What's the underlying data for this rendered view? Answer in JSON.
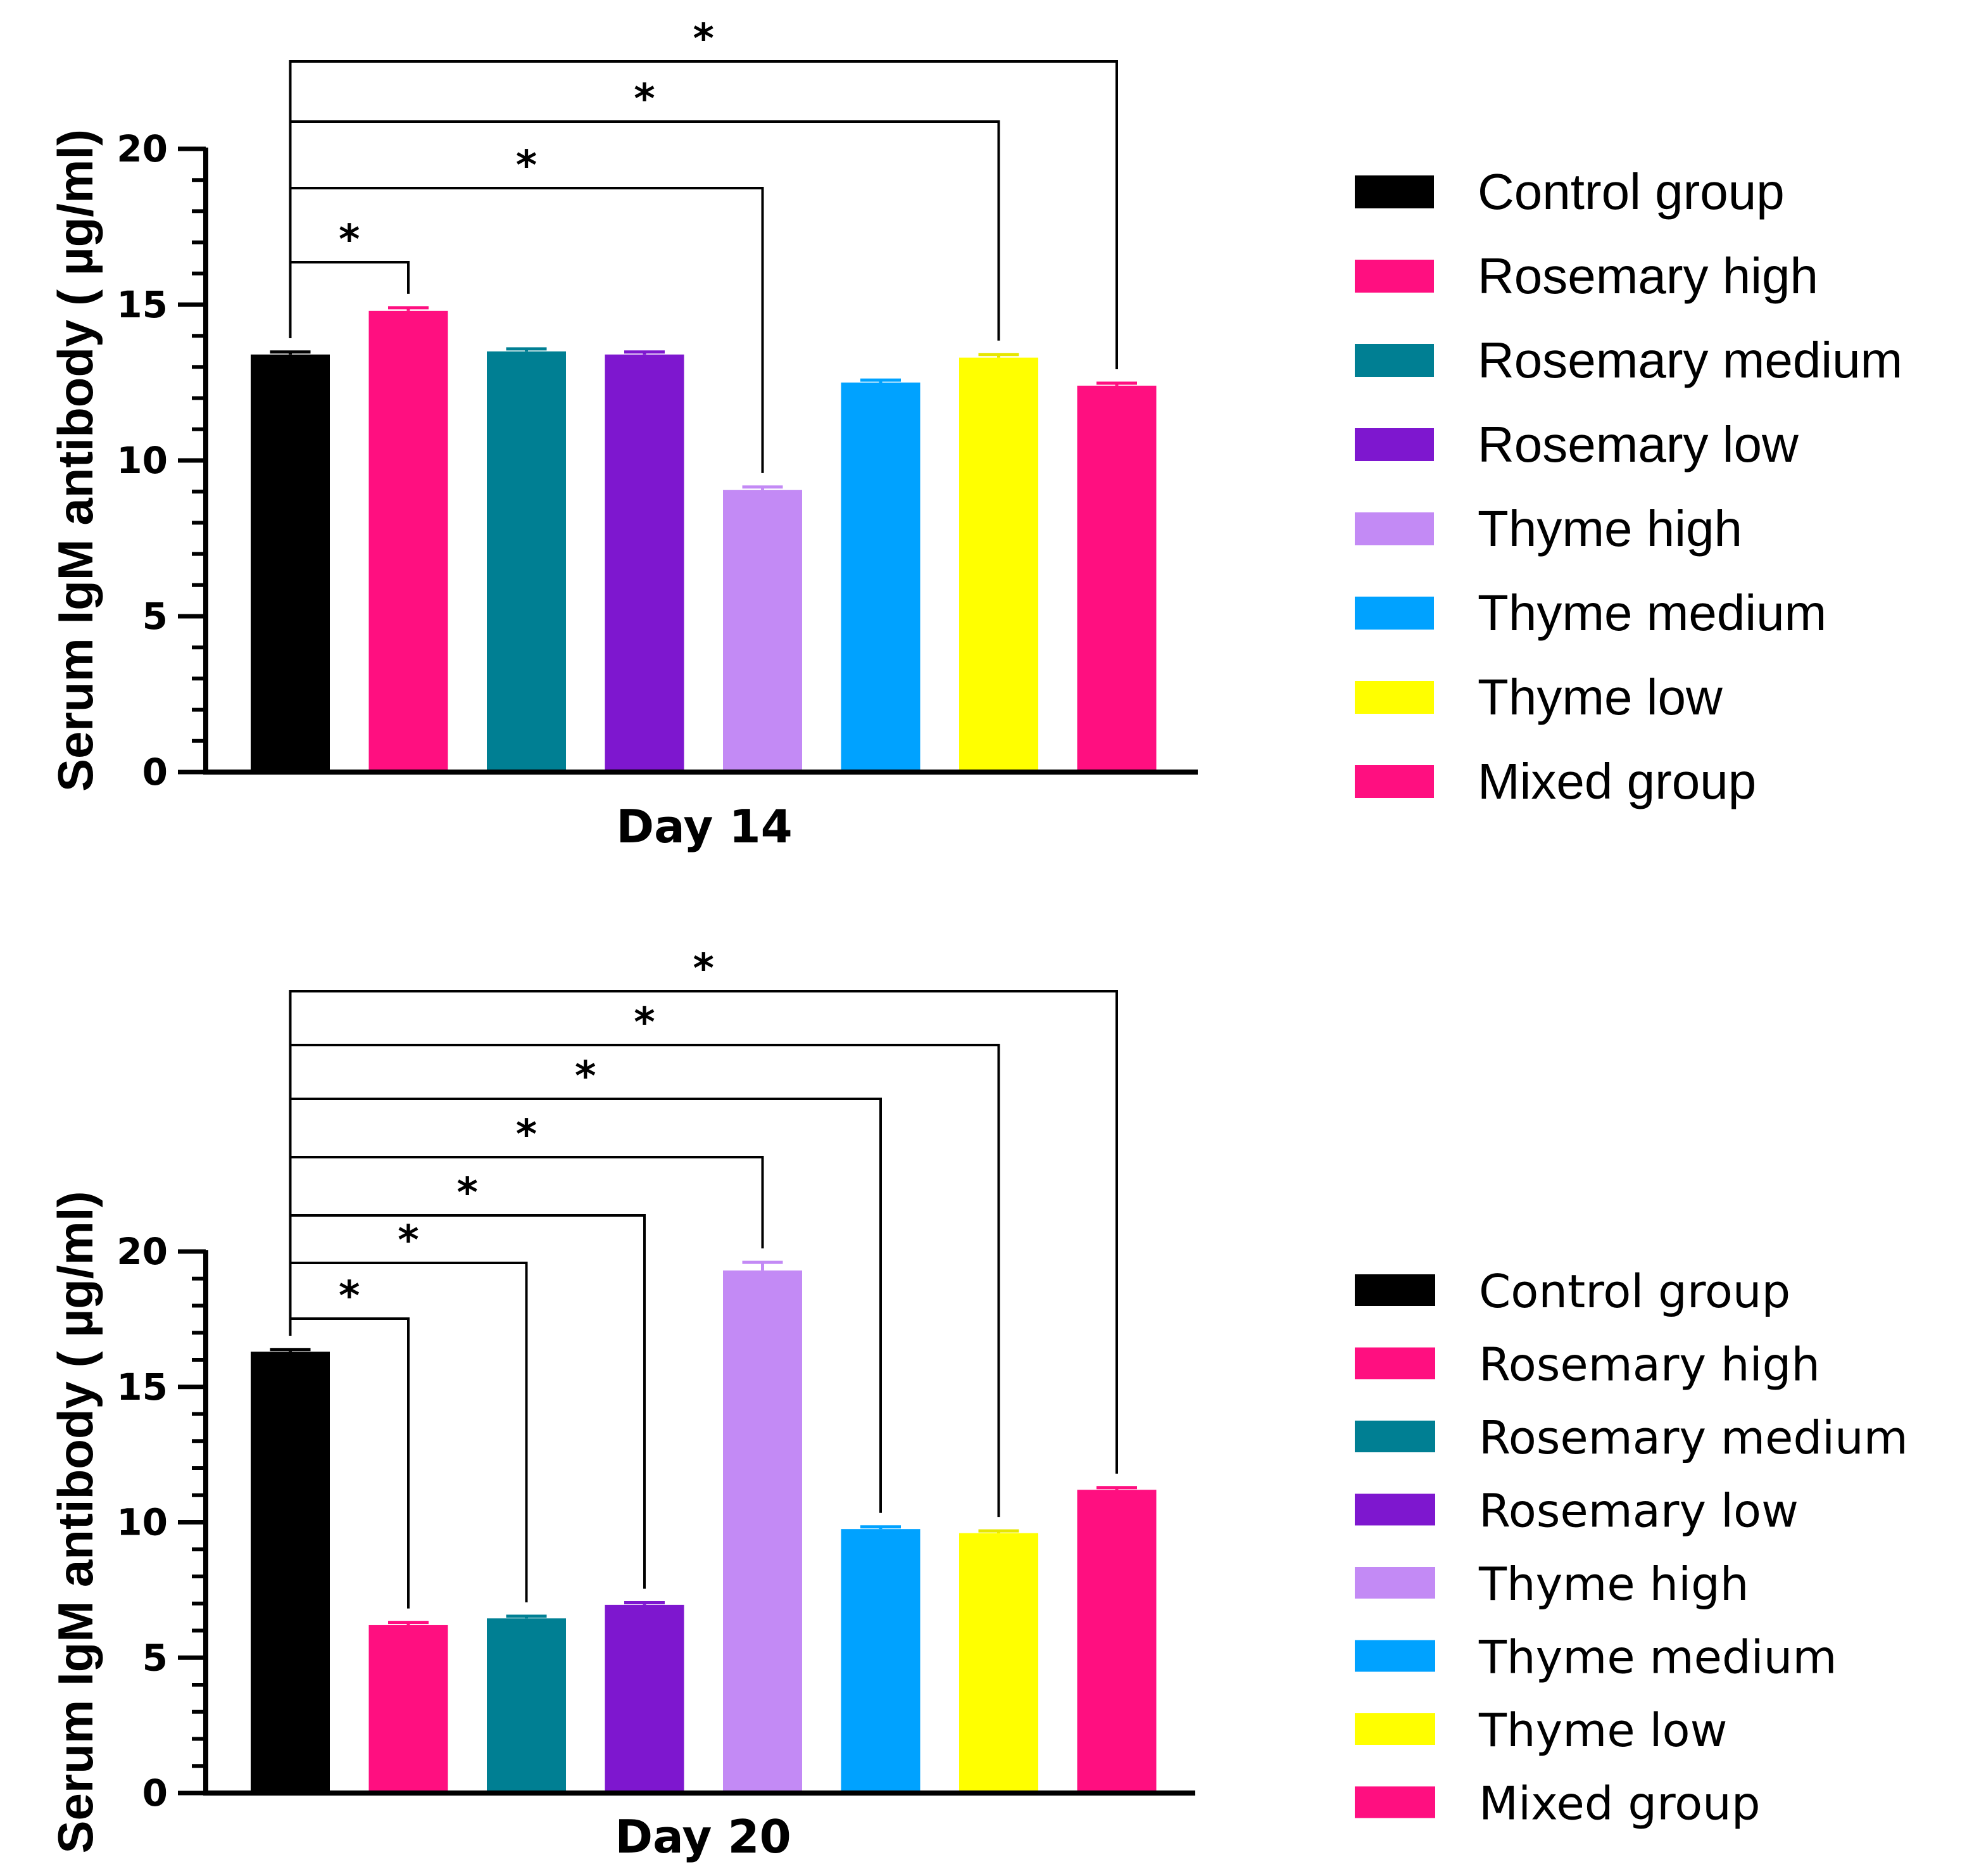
{
  "colors": {
    "Control group": "#000000",
    "Rosemary high": "#ff0f80",
    "Rosemary medium": "#007f93",
    "Rosemary low": "#7e17cf",
    "Thyme high": "#c38af5",
    "Thyme medium": "#00a2ff",
    "Thyme low": "#ffff00",
    "Mixed group": "#ff0f80"
  },
  "chart_data": [
    {
      "type": "bar",
      "title": "",
      "xlabel": "Day 14",
      "ylabel": "Serum IgM antibody ( µg/ml)",
      "ylim": [
        0,
        20
      ],
      "yticks": [
        0,
        5,
        10,
        15,
        20
      ],
      "yticks_text": [
        "0",
        "5",
        "10",
        "15",
        "20"
      ],
      "categories": [
        "Control group",
        "Rosemary high",
        "Rosemary medium",
        "Rosemary low",
        "Thyme high",
        "Thyme medium",
        "Thyme low",
        "Mixed group"
      ],
      "values": [
        13.4,
        14.8,
        13.5,
        13.4,
        9.05,
        12.5,
        13.3,
        12.4
      ],
      "errors": [
        0.08,
        0.1,
        0.08,
        0.08,
        0.1,
        0.08,
        0.1,
        0.08
      ],
      "legend": [
        "Control group",
        "Rosemary high",
        "Rosemary medium",
        "Rosemary low",
        "Thyme high",
        "Thyme medium",
        "Thyme low",
        "Mixed group"
      ],
      "legend_position": "right",
      "significance": [
        {
          "from": 0,
          "to": 1,
          "label": "*"
        },
        {
          "from": 0,
          "to": 4,
          "label": "*"
        },
        {
          "from": 0,
          "to": 6,
          "label": "*"
        },
        {
          "from": 0,
          "to": 7,
          "label": "*"
        }
      ]
    },
    {
      "type": "bar",
      "title": "",
      "xlabel": "Day 20",
      "ylabel": "Serum IgM antibody ( µg/ml)",
      "ylim": [
        0,
        20
      ],
      "yticks": [
        0,
        5,
        10,
        15,
        20
      ],
      "yticks_text": [
        "0",
        "5",
        "10",
        "15",
        "20"
      ],
      "categories": [
        "Control group",
        "Rosemary high",
        "Rosemary medium",
        "Rosemary low",
        "Thyme high",
        "Thyme medium",
        "Thyme low",
        "Mixed group"
      ],
      "values": [
        16.3,
        6.2,
        6.45,
        6.95,
        19.3,
        9.75,
        9.6,
        11.2
      ],
      "errors": [
        0.08,
        0.1,
        0.08,
        0.08,
        0.3,
        0.08,
        0.08,
        0.08
      ],
      "legend": [
        "Control group",
        "Rosemary high",
        "Rosemary medium",
        "Rosemary low",
        "Thyme high",
        "Thyme medium",
        "Thyme low",
        "Mixed group"
      ],
      "legend_position": "right",
      "significance": [
        {
          "from": 0,
          "to": 1,
          "label": "*"
        },
        {
          "from": 0,
          "to": 2,
          "label": "*"
        },
        {
          "from": 0,
          "to": 3,
          "label": "*"
        },
        {
          "from": 0,
          "to": 4,
          "label": "*"
        },
        {
          "from": 0,
          "to": 5,
          "label": "*"
        },
        {
          "from": 0,
          "to": 6,
          "label": "*"
        },
        {
          "from": 0,
          "to": 7,
          "label": "*"
        }
      ]
    }
  ]
}
